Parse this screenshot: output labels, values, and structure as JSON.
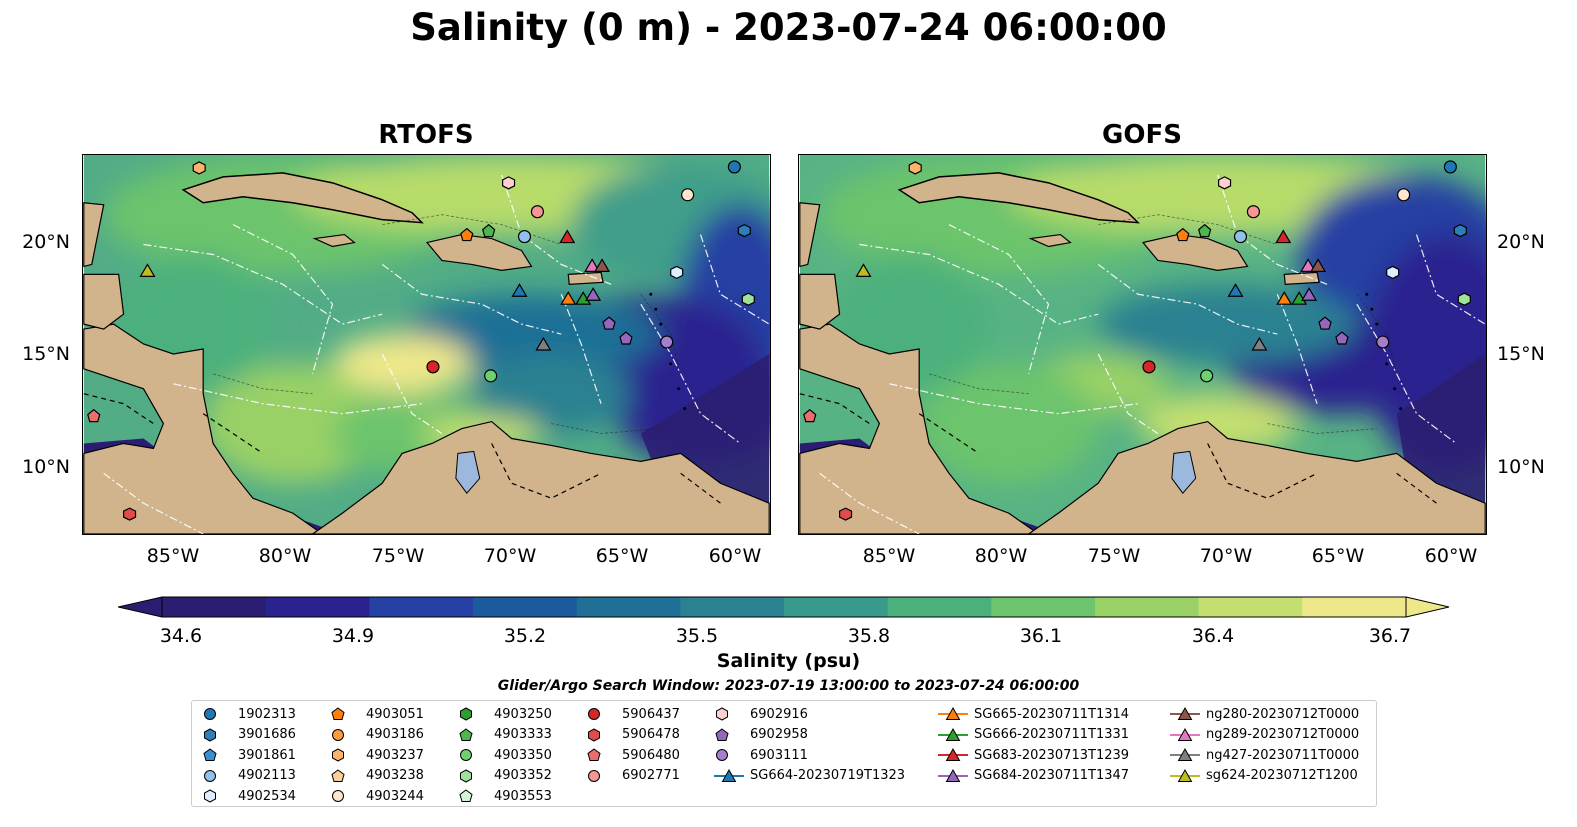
{
  "title": "Salinity (0 m) - 2023-07-24 06:00:00",
  "panels": [
    {
      "title": "RTOFS"
    },
    {
      "title": "GOFS"
    }
  ],
  "axes": {
    "x_ticks": [
      "85°W",
      "80°W",
      "75°W",
      "70°W",
      "65°W",
      "60°W"
    ],
    "y_ticks": [
      "20°N",
      "15°N",
      "10°N"
    ]
  },
  "colorbar": {
    "label": "Salinity (psu)",
    "ticks": [
      "34.6",
      "34.9",
      "35.2",
      "35.5",
      "35.8",
      "36.1",
      "36.4",
      "36.7"
    ],
    "colors": [
      "#2b1e72",
      "#2a238f",
      "#2640a3",
      "#1c5a9e",
      "#1f6f96",
      "#2a8191",
      "#379a8b",
      "#4cb07d",
      "#6cc46c",
      "#9ad166",
      "#c4df6f",
      "#eee88a"
    ]
  },
  "search_window": "Glider/Argo Search Window: 2023-07-19 13:00:00 to 2023-07-24 06:00:00",
  "legend": [
    {
      "label": "1902313",
      "marker": "circle",
      "color": "#1f77b4"
    },
    {
      "label": "3901686",
      "marker": "hexagon",
      "color": "#2c7fb8"
    },
    {
      "label": "3901861",
      "marker": "pentagon",
      "color": "#3a8fd0"
    },
    {
      "label": "4902113",
      "marker": "circle",
      "color": "#8fc1ea"
    },
    {
      "label": "4902534",
      "marker": "hexagon",
      "color": "#dceeff"
    },
    {
      "label": "4903051",
      "marker": "pentagon",
      "color": "#ff7f0e"
    },
    {
      "label": "4903186",
      "marker": "circle",
      "color": "#ff9a3d"
    },
    {
      "label": "4903237",
      "marker": "hexagon",
      "color": "#ffb26b"
    },
    {
      "label": "4903238",
      "marker": "pentagon",
      "color": "#ffcf9b"
    },
    {
      "label": "4903244",
      "marker": "circle",
      "color": "#ffe6cc"
    },
    {
      "label": "4903250",
      "marker": "hexagon",
      "color": "#2ca02c"
    },
    {
      "label": "4903333",
      "marker": "pentagon",
      "color": "#4cb84c"
    },
    {
      "label": "4903350",
      "marker": "circle",
      "color": "#6fd06f"
    },
    {
      "label": "4903352",
      "marker": "hexagon",
      "color": "#9ee29e"
    },
    {
      "label": "4903553",
      "marker": "pentagon",
      "color": "#d4f5d4"
    },
    {
      "label": "5906437",
      "marker": "circle",
      "color": "#d62728"
    },
    {
      "label": "5906478",
      "marker": "hexagon",
      "color": "#e04b4b"
    },
    {
      "label": "5906480",
      "marker": "pentagon",
      "color": "#ea6e6e"
    },
    {
      "label": "6902771",
      "marker": "circle",
      "color": "#f59595"
    },
    {
      "label": "6902916",
      "marker": "hexagon",
      "color": "#ffd0d0"
    },
    {
      "label": "6902958",
      "marker": "pentagon",
      "color": "#9467bd"
    },
    {
      "label": "6903111",
      "marker": "circle",
      "color": "#a57fcc"
    },
    {
      "label": "SG664-20230719T1323",
      "marker": "triangle",
      "color": "#1f77b4"
    },
    {
      "label": "SG665-20230711T1314",
      "marker": "triangle",
      "color": "#ff7f0e"
    },
    {
      "label": "SG666-20230711T1331",
      "marker": "triangle",
      "color": "#2ca02c"
    },
    {
      "label": "SG683-20230713T1239",
      "marker": "triangle",
      "color": "#d62728"
    },
    {
      "label": "SG684-20230711T1347",
      "marker": "triangle",
      "color": "#9467bd"
    },
    {
      "label": "ng280-20230712T0000",
      "marker": "triangle",
      "color": "#8c564b"
    },
    {
      "label": "ng289-20230712T0000",
      "marker": "triangle",
      "color": "#e377c2"
    },
    {
      "label": "ng427-20230711T0000",
      "marker": "triangle",
      "color": "#7f7f7f"
    },
    {
      "label": "sg624-20230712T1200",
      "marker": "triangle",
      "color": "#bcbd22"
    }
  ]
}
